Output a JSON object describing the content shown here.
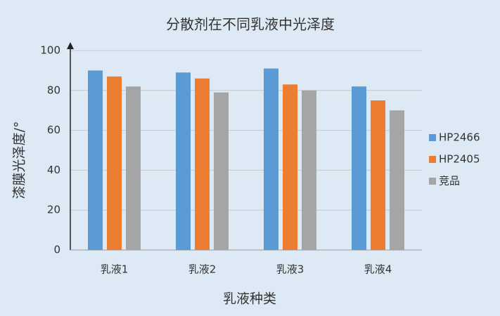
{
  "chart_data": {
    "type": "bar",
    "title": "分散剂在不同乳液中光泽度",
    "x_label": "乳液种类",
    "y_label": "漆膜光泽度/°",
    "categories": [
      "乳液1",
      "乳液2",
      "乳液3",
      "乳液4"
    ],
    "series": [
      {
        "name": "HP2466",
        "color": "#5b9bd5",
        "values": [
          90,
          89,
          91,
          82
        ]
      },
      {
        "name": "HP2405",
        "color": "#ed7d31",
        "values": [
          87,
          86,
          83,
          75
        ]
      },
      {
        "name": "竞品",
        "color": "#a5a5a5",
        "values": [
          82,
          79,
          80,
          70
        ]
      }
    ],
    "ylim": [
      0,
      100
    ],
    "yticks": [
      0,
      20,
      40,
      60,
      80,
      100
    ],
    "grid": true,
    "legend": "right"
  }
}
